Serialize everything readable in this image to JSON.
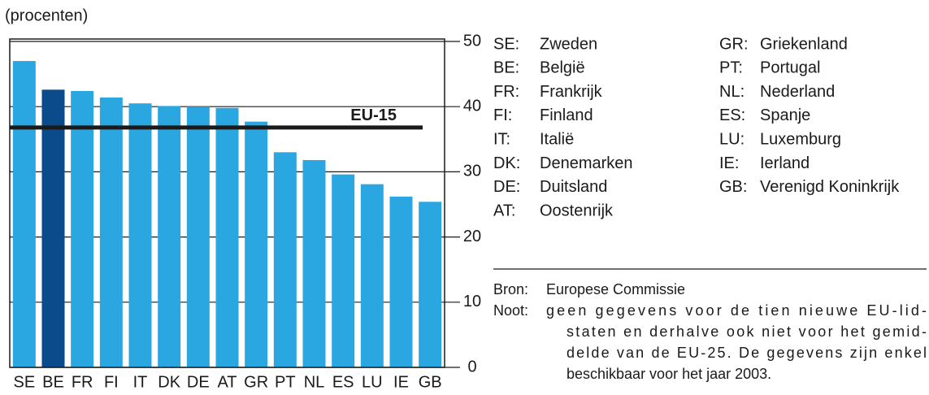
{
  "chart_data": {
    "type": "bar",
    "title": "(procenten)",
    "categories": [
      "SE",
      "BE",
      "FR",
      "FI",
      "IT",
      "DK",
      "DE",
      "AT",
      "GR",
      "PT",
      "NL",
      "ES",
      "LU",
      "IE",
      "GB"
    ],
    "values": [
      47.0,
      42.6,
      42.4,
      41.4,
      40.5,
      40.1,
      40.0,
      39.8,
      37.7,
      33.0,
      31.8,
      29.6,
      28.1,
      26.2,
      25.4
    ],
    "colors": [
      "#2aa7e1",
      "#0b4a8b",
      "#2aa7e1",
      "#2aa7e1",
      "#2aa7e1",
      "#2aa7e1",
      "#2aa7e1",
      "#2aa7e1",
      "#2aa7e1",
      "#2aa7e1",
      "#2aa7e1",
      "#2aa7e1",
      "#2aa7e1",
      "#2aa7e1",
      "#2aa7e1"
    ],
    "ylim": [
      0,
      50
    ],
    "yticks": [
      0,
      10,
      20,
      30,
      40,
      50
    ],
    "grid": true,
    "reference": {
      "label": "EU-15",
      "value": 36.8,
      "color": "#1a1a1a"
    },
    "legend": [
      {
        "code": "SE:",
        "name": "Zweden"
      },
      {
        "code": "BE:",
        "name": "België"
      },
      {
        "code": "FR:",
        "name": "Frankrijk"
      },
      {
        "code": "FI:",
        "name": "Finland"
      },
      {
        "code": "IT:",
        "name": "Italië"
      },
      {
        "code": "DK:",
        "name": "Denemarken"
      },
      {
        "code": "DE:",
        "name": "Duitsland"
      },
      {
        "code": "AT:",
        "name": "Oostenrijk"
      },
      {
        "code": "GR:",
        "name": "Griekenland"
      },
      {
        "code": "PT:",
        "name": "Portugal"
      },
      {
        "code": "NL:",
        "name": "Nederland"
      },
      {
        "code": "ES:",
        "name": "Spanje"
      },
      {
        "code": "LU:",
        "name": "Luxemburg"
      },
      {
        "code": "IE:",
        "name": "Ierland"
      },
      {
        "code": "GB:",
        "name": "Verenigd Koninkrijk"
      }
    ],
    "source": {
      "label": "Bron:",
      "text": "Europese Commissie"
    },
    "note": {
      "label": "Noot:",
      "lines": [
        "geen gegevens voor de tien nieuwe EU-lid-",
        "staten en derhalve ook niet voor het gemid-",
        "delde van de EU-25. De gegevens zijn enkel",
        "beschikbaar voor het jaar 2003."
      ]
    }
  }
}
